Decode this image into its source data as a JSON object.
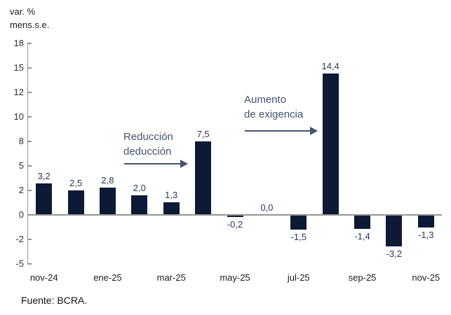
{
  "title": {
    "line1": "var. %",
    "line2": "mens.s.e."
  },
  "footer": {
    "source": "Fuente: BCRA."
  },
  "colors": {
    "bar": "#0d1a36",
    "value_label": "#27395e",
    "annotation": "#44546a",
    "axis": "#949494",
    "y_tick_label": "#303030",
    "x_tick_label": "#1c1c1c",
    "background": "#ffffff"
  },
  "chart_data": {
    "type": "bar",
    "title": "var. % mens.s.e.",
    "ylabel": "var. % mens.s.e.",
    "xlabel": "",
    "grid": false,
    "legend": false,
    "n_bars": 13,
    "values": [
      3.2,
      2.5,
      2.8,
      2.0,
      1.3,
      7.5,
      -0.2,
      0.0,
      -1.5,
      14.4,
      -1.4,
      -3.2,
      -1.3
    ],
    "value_labels": [
      "3,2",
      "2,5",
      "2,8",
      "2,0",
      "1,3",
      "7,5",
      "-0,2",
      "0,0",
      "-1,5",
      "14,4",
      "-1,4",
      "-3,2",
      "-1,3"
    ],
    "x_tick_labels": [
      "nov-24",
      "ene-25",
      "mar-25",
      "may-25",
      "jul-25",
      "sep-25",
      "nov-25"
    ],
    "x_tick_slots": [
      0,
      2,
      4,
      6,
      8,
      10,
      12
    ],
    "y_tick_labels": [
      "18",
      "15",
      "12",
      "10",
      "8",
      "5",
      "2",
      "0",
      "-2",
      "-5"
    ],
    "y_axis_range": [
      -5,
      17.5
    ],
    "y_step": 2.5,
    "annotations": [
      {
        "id": "reduccion-deduccion",
        "lines": [
          "Reducción",
          "deducción"
        ]
      },
      {
        "id": "aumento-exigencia",
        "lines": [
          "Aumento",
          "de exigencia"
        ]
      }
    ]
  }
}
